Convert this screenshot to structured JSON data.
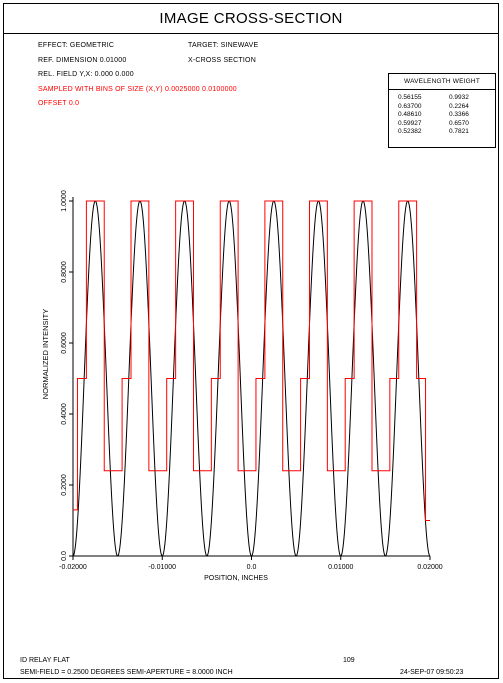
{
  "title": "IMAGE CROSS-SECTION",
  "header": {
    "effect": "EFFECT: GEOMETRIC",
    "target": "TARGET: SINEWAVE",
    "ref_dimension": "REF. DIMENSION    0.01000",
    "cross_section": "X-CROSS SECTION",
    "rel_field": "REL. FIELD Y,X:  0.000  0.000",
    "sampled": "SAMPLED WITH BINS OF SIZE (X,Y)  0.0025000   0.0100000",
    "offset": "OFFSET 0.0"
  },
  "legend": {
    "header": "WAVELENGTH  WEIGHT",
    "rows": [
      {
        "wavelength": "0.56155",
        "weight": "0.9932"
      },
      {
        "wavelength": "0.63700",
        "weight": "0.2264"
      },
      {
        "wavelength": "0.48610",
        "weight": "0.3366"
      },
      {
        "wavelength": "0.59927",
        "weight": "0.6570"
      },
      {
        "wavelength": "0.52382",
        "weight": "0.7821"
      }
    ]
  },
  "footer": {
    "name": "ID RELAY FLAT",
    "page": "109",
    "semi_field": "SEMI-FIELD =  0.2500 DEGREES  SEMI-APERTURE =  8.0000 INCH",
    "date": "24-SEP-07  09:50:23"
  },
  "colors": {
    "target": "#000000",
    "image": "#ff0000"
  },
  "chart_data": {
    "type": "line",
    "xlabel": "POSITION, INCHES",
    "ylabel": "NORMALIZED INTENSITY",
    "xlim": [
      -0.02,
      0.02
    ],
    "ylim": [
      0,
      1
    ],
    "xticks": [
      -0.02,
      -0.01,
      0.0,
      0.01,
      0.02
    ],
    "xtick_labels": [
      "-0.02000",
      "-0.01000",
      "0.0",
      "0.01000",
      "0.02000"
    ],
    "yticks": [
      0,
      0.2,
      0.4,
      0.6,
      0.8,
      1.0
    ],
    "ytick_labels": [
      "0.0",
      "0.2000",
      "0.4000",
      "0.6000",
      "0.8000",
      "1.0000"
    ],
    "grid": false,
    "series": [
      {
        "role": "target sinewave",
        "function": "0.5 + 0.5*sin(2*pi*(x + 0.02)/0.005 - pi/2)",
        "period": 0.005,
        "min": 0,
        "max": 1,
        "color": "#000000"
      },
      {
        "role": "sampled image",
        "color": "#ff0000",
        "steps": [
          {
            "x0": -0.02,
            "x1": -0.0195,
            "y": 0.13
          },
          {
            "x0": -0.0195,
            "x1": -0.0185,
            "y": 0.5
          },
          {
            "x0": -0.0185,
            "x1": -0.0165,
            "y": 1.0
          },
          {
            "x0": -0.0165,
            "x1": -0.0145,
            "y": 0.24
          },
          {
            "x0": -0.0145,
            "x1": -0.0135,
            "y": 0.5
          },
          {
            "x0": -0.0135,
            "x1": -0.0115,
            "y": 1.0
          },
          {
            "x0": -0.0115,
            "x1": -0.0095,
            "y": 0.24
          },
          {
            "x0": -0.0095,
            "x1": -0.0085,
            "y": 0.5
          },
          {
            "x0": -0.0085,
            "x1": -0.0065,
            "y": 1.0
          },
          {
            "x0": -0.0065,
            "x1": -0.0045,
            "y": 0.24
          },
          {
            "x0": -0.0045,
            "x1": -0.0035,
            "y": 0.5
          },
          {
            "x0": -0.0035,
            "x1": -0.0015,
            "y": 1.0
          },
          {
            "x0": -0.0015,
            "x1": 0.0005,
            "y": 0.24
          },
          {
            "x0": 0.0005,
            "x1": 0.0015,
            "y": 0.5
          },
          {
            "x0": 0.0015,
            "x1": 0.0035,
            "y": 1.0
          },
          {
            "x0": 0.0035,
            "x1": 0.0055,
            "y": 0.24
          },
          {
            "x0": 0.0055,
            "x1": 0.0065,
            "y": 0.5
          },
          {
            "x0": 0.0065,
            "x1": 0.0085,
            "y": 1.0
          },
          {
            "x0": 0.0085,
            "x1": 0.0105,
            "y": 0.24
          },
          {
            "x0": 0.0105,
            "x1": 0.0115,
            "y": 0.5
          },
          {
            "x0": 0.0115,
            "x1": 0.0135,
            "y": 1.0
          },
          {
            "x0": 0.0135,
            "x1": 0.0155,
            "y": 0.24
          },
          {
            "x0": 0.0155,
            "x1": 0.0165,
            "y": 0.5
          },
          {
            "x0": 0.0165,
            "x1": 0.0185,
            "y": 1.0
          },
          {
            "x0": 0.0185,
            "x1": 0.0195,
            "y": 0.5
          },
          {
            "x0": 0.0195,
            "x1": 0.02,
            "y": 0.1
          }
        ]
      }
    ]
  }
}
